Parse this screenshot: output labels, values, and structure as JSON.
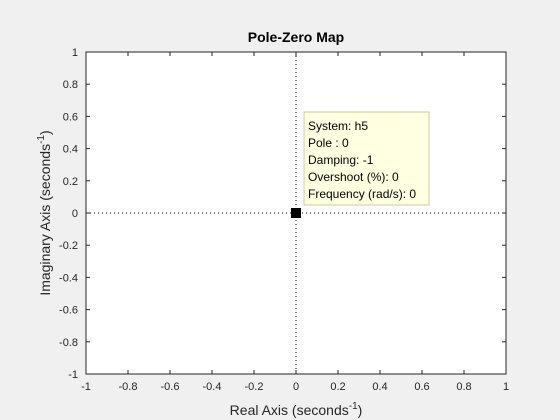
{
  "chart_data": {
    "type": "scatter",
    "title": "Pole-Zero Map",
    "xlabel": {
      "text": "Real Axis (seconds",
      "sup": "-1",
      "close": ")"
    },
    "ylabel": {
      "text": "Imaginary Axis (seconds",
      "sup": "-1",
      "close": ")"
    },
    "xlim": [
      -1,
      1
    ],
    "ylim": [
      -1,
      1
    ],
    "xticks": [
      -1,
      -0.8,
      -0.6,
      -0.4,
      -0.2,
      0,
      0.2,
      0.4,
      0.6,
      0.8,
      1
    ],
    "yticks": [
      -1,
      -0.8,
      -0.6,
      -0.4,
      -0.2,
      0,
      0.2,
      0.4,
      0.6,
      0.8,
      1
    ],
    "xtick_labels": [
      "-1",
      "-0.8",
      "-0.6",
      "-0.4",
      "-0.2",
      "0",
      "0.2",
      "0.4",
      "0.6",
      "0.8",
      "1"
    ],
    "ytick_labels": [
      "-1",
      "-0.8",
      "-0.6",
      "-0.4",
      "-0.2",
      "0",
      "0.2",
      "0.4",
      "0.6",
      "0.8",
      "1"
    ],
    "grid": false,
    "series": [
      {
        "marker": "square",
        "color": "#000000",
        "points": [
          {
            "x": 0,
            "y": 0
          }
        ]
      }
    ],
    "datatip": {
      "anchor": {
        "x": 0,
        "y": 0
      },
      "lines": [
        "System: h5",
        "Pole : 0",
        "Damping: -1",
        "Overshoot (%): 0",
        "Frequency (rad/s): 0"
      ],
      "background": "#ffffe1",
      "border": "#c8c8a0"
    },
    "colors": {
      "figure_bg": "#f0f0f0",
      "axes_bg": "#ffffff",
      "axes_edge": "#262626",
      "zero_lines": "#000000"
    }
  }
}
